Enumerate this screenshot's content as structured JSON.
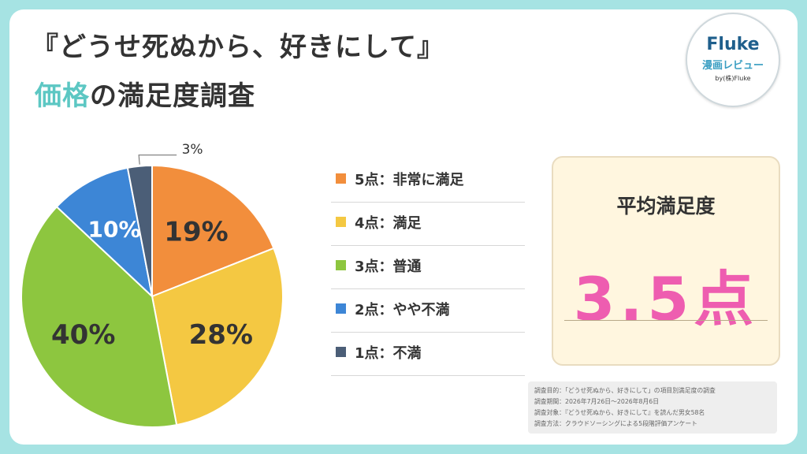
{
  "title": {
    "line1": "『どうせ死ぬから、好きにして』",
    "line2_accent": "価格",
    "line2_rest": "の満足度調査"
  },
  "logo": {
    "name": "Fluke",
    "subtitle": "漫画レビュー",
    "credit": "by(株)Fluke"
  },
  "chart_data": {
    "type": "pie",
    "start_angle_deg": 0,
    "direction": "clockwise",
    "slices": [
      {
        "label": "5点：非常に満足",
        "value": 19,
        "display": "19%",
        "color": "#f28e3c"
      },
      {
        "label": "4点：満足",
        "value": 28,
        "display": "28%",
        "color": "#f4c842"
      },
      {
        "label": "3点：普通",
        "value": 40,
        "display": "40%",
        "color": "#8dc63f"
      },
      {
        "label": "2点：やや不満",
        "value": 10,
        "display": "10%",
        "color": "#3d86d6"
      },
      {
        "label": "1点：不満",
        "value": 3,
        "display": "3%",
        "color": "#4b5e77"
      }
    ],
    "legend_position": "right"
  },
  "average": {
    "title": "平均満足度",
    "value": "3.5点"
  },
  "notes": [
    "調査目的：「どうせ死ぬから、好きにして」の項目別満足度の調査",
    "調査期間：2026年7月26日〜2026年8月6日",
    "調査対象：『どうせ死ぬから、好きにして』を読んだ男女58名",
    "調査方法：クラウドソーシングによる5段階評価アンケート"
  ]
}
